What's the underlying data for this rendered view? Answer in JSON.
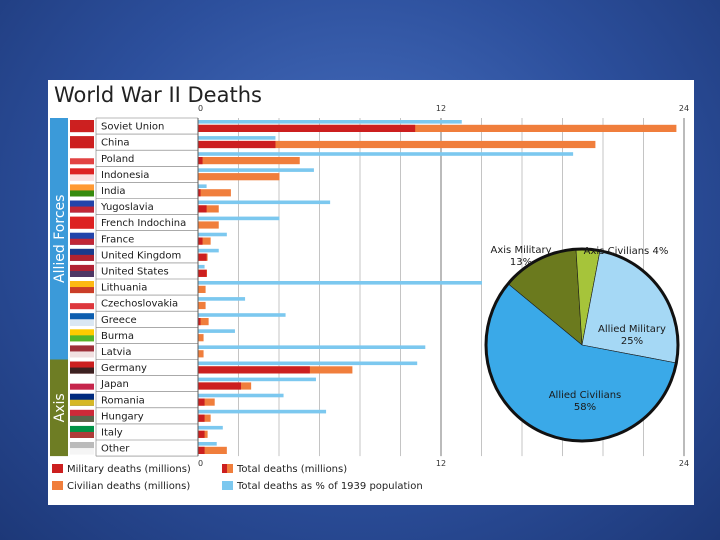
{
  "chart_data": {
    "title": "World War II Deaths",
    "type": "bar",
    "x_ticks": [
      "0",
      "12",
      "24"
    ],
    "xlim": [
      0,
      24
    ],
    "groups": [
      {
        "name": "Allied Forces",
        "color": "#3b9ad9",
        "countries": [
          "Soviet Union",
          "China",
          "Poland",
          "Indonesia",
          "India",
          "Yugoslavia",
          "French Indochina",
          "France",
          "United Kingdom",
          "United States",
          "Lithuania",
          "Czechoslovakia",
          "Greece",
          "Burma",
          "Latvia"
        ]
      },
      {
        "name": "Axis",
        "color": "#6e7d24",
        "countries": [
          "Germany",
          "Japan",
          "Romania",
          "Hungary",
          "Italy",
          "Other"
        ]
      }
    ],
    "categories": [
      "Soviet Union",
      "China",
      "Poland",
      "Indonesia",
      "India",
      "Yugoslavia",
      "French Indochina",
      "France",
      "United Kingdom",
      "United States",
      "Lithuania",
      "Czechoslovakia",
      "Greece",
      "Burma",
      "Latvia",
      "Germany",
      "Japan",
      "Romania",
      "Hungary",
      "Italy",
      "Other"
    ],
    "series": [
      {
        "name": "Military deaths (millions)",
        "color": "#cc1f1f",
        "values": [
          10.7,
          3.8,
          0.2,
          0.0,
          0.1,
          0.4,
          0.0,
          0.2,
          0.4,
          0.4,
          0.0,
          0.0,
          0.1,
          0.0,
          0.0,
          5.5,
          2.1,
          0.3,
          0.3,
          0.3,
          0.3
        ]
      },
      {
        "name": "Total deaths (millions)",
        "color": "#f07e3c",
        "values": [
          23.6,
          19.6,
          5.0,
          4.0,
          1.6,
          1.0,
          1.0,
          0.6,
          0.45,
          0.42,
          0.35,
          0.35,
          0.5,
          0.25,
          0.25,
          7.6,
          2.6,
          0.8,
          0.6,
          0.45,
          1.4
        ]
      },
      {
        "name": "Total deaths as % of 1939 population",
        "color": "#7cc8ef",
        "values": [
          13.0,
          3.8,
          18.5,
          5.7,
          0.4,
          6.5,
          4.0,
          1.4,
          1.0,
          0.3,
          14.0,
          2.3,
          4.3,
          1.8,
          11.2,
          10.8,
          5.8,
          4.2,
          6.3,
          1.2,
          0.9
        ]
      }
    ],
    "legend": [
      {
        "label": "Military deaths (millions)",
        "color": "#cc1f1f",
        "color2": "#cc1f1f"
      },
      {
        "label": "Total deaths (millions)",
        "color": "#cc1f1f",
        "color2": "#f07e3c"
      },
      {
        "label": "Civilian deaths (millions)",
        "color": "#f07e3c",
        "color2": "#f07e3c"
      },
      {
        "label": "Total deaths as % of 1939 population",
        "color": "#7cc8ef",
        "color2": "#7cc8ef"
      }
    ],
    "pie": {
      "type": "pie",
      "slices": [
        {
          "label": "Axis Military",
          "value": "13%",
          "pct": 13,
          "color": "#6b7a1e"
        },
        {
          "label": "Axis Civilians",
          "value": "4%",
          "pct": 4,
          "color": "#a6c43a"
        },
        {
          "label": "Allied Military",
          "value": "25%",
          "pct": 25,
          "color": "#a5d8f5"
        },
        {
          "label": "Allied Civilians",
          "value": "58%",
          "pct": 58,
          "color": "#3aa9e8"
        }
      ]
    }
  }
}
